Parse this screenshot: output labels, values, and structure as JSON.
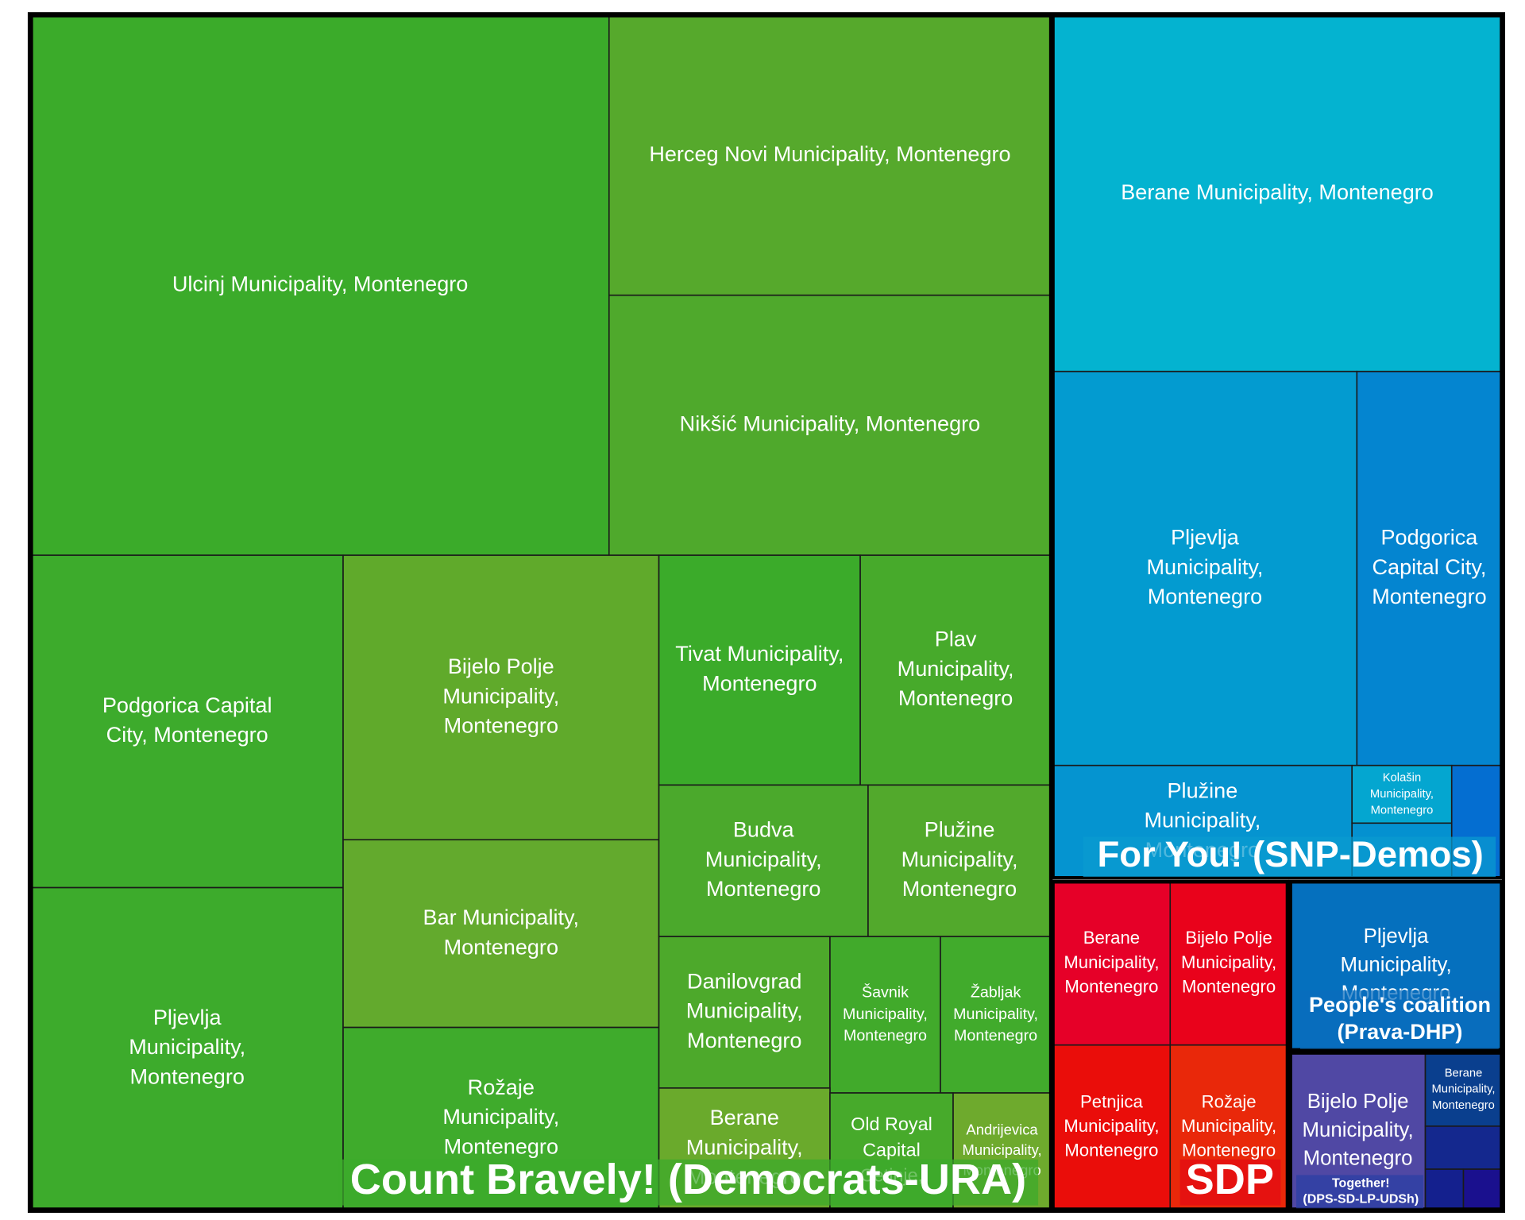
{
  "chart_data": {
    "type": "treemap",
    "groups": [
      {
        "name": "Count Bravely! (Democrats-URA)",
        "color": "#3cab2b",
        "cells": [
          {
            "label": "Ulcinj Municipality, Montenegro",
            "color": "#3bab2a"
          },
          {
            "label": "Herceg Novi Municipality, Montenegro",
            "color": "#56a92c"
          },
          {
            "label": "Nikšić Municipality, Montenegro",
            "color": "#4fa92c"
          },
          {
            "label": "Podgorica Capital City, Montenegro",
            "color": "#3dab2c"
          },
          {
            "label": "Pljevlja Municipality, Montenegro",
            "color": "#3dab2c"
          },
          {
            "label": "Bijelo Polje Municipality, Montenegro",
            "color": "#60aa2b"
          },
          {
            "label": "Bar Municipality, Montenegro",
            "color": "#63aa2d"
          },
          {
            "label": "Rožaje Municipality, Montenegro",
            "color": "#3fab2c"
          },
          {
            "label": "Tivat Municipality, Montenegro",
            "color": "#3bab2a"
          },
          {
            "label": "Plav Municipality, Montenegro",
            "color": "#47aa2b"
          },
          {
            "label": "Budva Municipality, Montenegro",
            "color": "#4ba92c"
          },
          {
            "label": "Plužine Municipality, Montenegro",
            "color": "#52a92c"
          },
          {
            "label": "Danilovgrad Municipality, Montenegro",
            "color": "#4da92b"
          },
          {
            "label": "Šavnik Municipality, Montenegro",
            "color": "#41aa2b"
          },
          {
            "label": "Žabljak Municipality, Montenegro",
            "color": "#41ab2c"
          },
          {
            "label": "Berane Municipality, Montenegro",
            "color": "#6aaa2c"
          },
          {
            "label": "Old Royal Capital Cetinje, Montenegro",
            "color": "#47aa2b"
          },
          {
            "label": "Andrijevica Municipality, Montenegro",
            "color": "#6eaa2d"
          }
        ]
      },
      {
        "name": "For You! (SNP-Demos)",
        "color": "#0a9bd0",
        "cells": [
          {
            "label": "Berane Municipality, Montenegro",
            "color": "#04b3d0"
          },
          {
            "label": "Pljevlja Municipality, Montenegro",
            "color": "#039bd0"
          },
          {
            "label": "Podgorica Capital City, Montenegro",
            "color": "#0485d0"
          },
          {
            "label": "Plužine Municipality, Montenegro",
            "color": "#0594d0"
          },
          {
            "label": "Kolašin Municipality, Montenegro",
            "color": "#04a6d0"
          },
          {
            "label": "",
            "color": "#0491d0"
          },
          {
            "label": "",
            "color": "#046ed1"
          }
        ]
      },
      {
        "name": "SDP",
        "color": "#e30a14",
        "cells": [
          {
            "label": "Berane Municipality, Montenegro",
            "color": "#e60028"
          },
          {
            "label": "Bijelo Polje Municipality, Montenegro",
            "color": "#e9021b"
          },
          {
            "label": "Petnjica Municipality, Montenegro",
            "color": "#ea0d0a"
          },
          {
            "label": "Rožaje Municipality, Montenegro",
            "color": "#e9280a"
          }
        ]
      },
      {
        "name": "People's coalition (Prava-DHP)",
        "color": "#0a6cbd",
        "cells": [
          {
            "label": "Pljevlja Municipality, Montenegro",
            "color": "#0570be"
          }
        ]
      },
      {
        "name": "Together! (DPS-SD-LP-UDSh)",
        "color": "#2a3fa3",
        "cells": [
          {
            "label": "Bijelo Polje Municipality, Montenegro",
            "color": "#5048a4"
          },
          {
            "label": "Berane Municipality, Montenegro",
            "color": "#0a3f8e"
          },
          {
            "label": "",
            "color": "#14288e"
          },
          {
            "label": "",
            "color": "#14208e"
          },
          {
            "label": "",
            "color": "#1a108e"
          }
        ]
      }
    ]
  }
}
